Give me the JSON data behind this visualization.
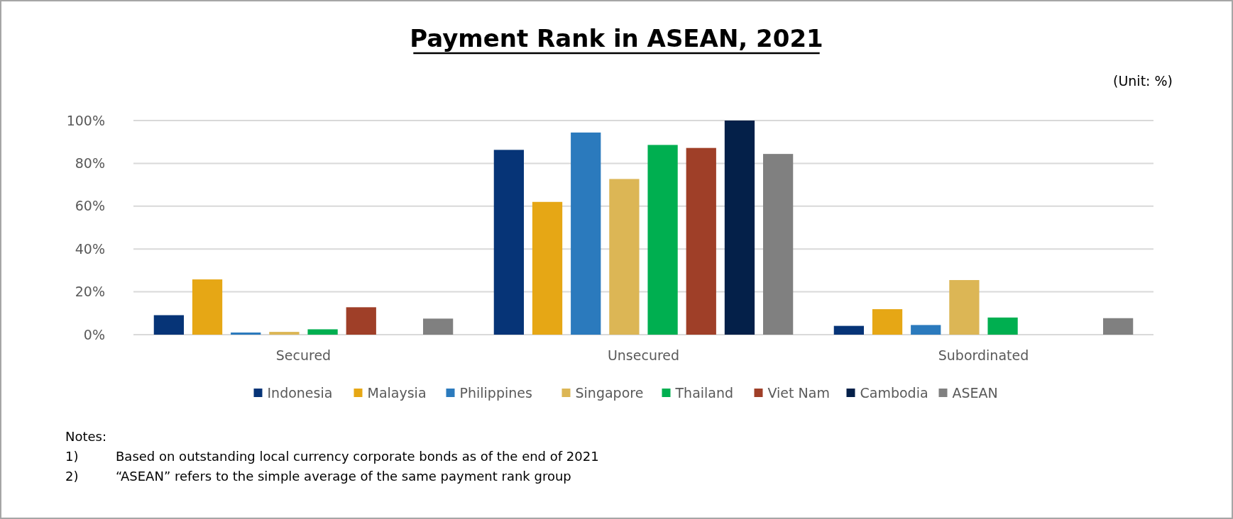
{
  "chart_data": {
    "type": "bar",
    "title": "Payment Rank in ASEAN, 2021",
    "categories": [
      "Secured",
      "Unsecured",
      "Subordinated"
    ],
    "series": [
      {
        "name": "Indonesia",
        "color": "#063477",
        "values": [
          9.1,
          86.3,
          4.1
        ]
      },
      {
        "name": "Malaysia",
        "color": "#e6a715",
        "values": [
          25.8,
          62.0,
          11.9
        ]
      },
      {
        "name": "Philippines",
        "color": "#2b7abd",
        "values": [
          1.0,
          94.4,
          4.5
        ]
      },
      {
        "name": "Singapore",
        "color": "#dcb655",
        "values": [
          1.3,
          72.7,
          25.5
        ]
      },
      {
        "name": "Thailand",
        "color": "#00af50",
        "values": [
          2.5,
          88.6,
          8.0
        ]
      },
      {
        "name": "Viet Nam",
        "color": "#9f3f28",
        "values": [
          12.8,
          87.2,
          0
        ]
      },
      {
        "name": "Cambodia",
        "color": "#042049",
        "values": [
          0,
          100,
          0
        ]
      },
      {
        "name": "ASEAN",
        "color": "#808080",
        "values": [
          7.5,
          84.4,
          7.7
        ]
      }
    ],
    "ylim": [
      0,
      100
    ],
    "yticks": [
      {
        "value": 0,
        "label": "0%"
      },
      {
        "value": 20,
        "label": "20%"
      },
      {
        "value": 40,
        "label": "40%"
      },
      {
        "value": 60,
        "label": "60%"
      },
      {
        "value": 80,
        "label": "80%"
      },
      {
        "value": 100,
        "label": "100%"
      }
    ],
    "grid": "y",
    "legend": "bottom",
    "annotations": [
      "(Unit: %)",
      "Notes:",
      "1)\tBased on outstanding local currency corporate bonds as of the end of 2021",
      "2)\t“ASEAN” refers to the simple average of the same payment rank group"
    ]
  }
}
